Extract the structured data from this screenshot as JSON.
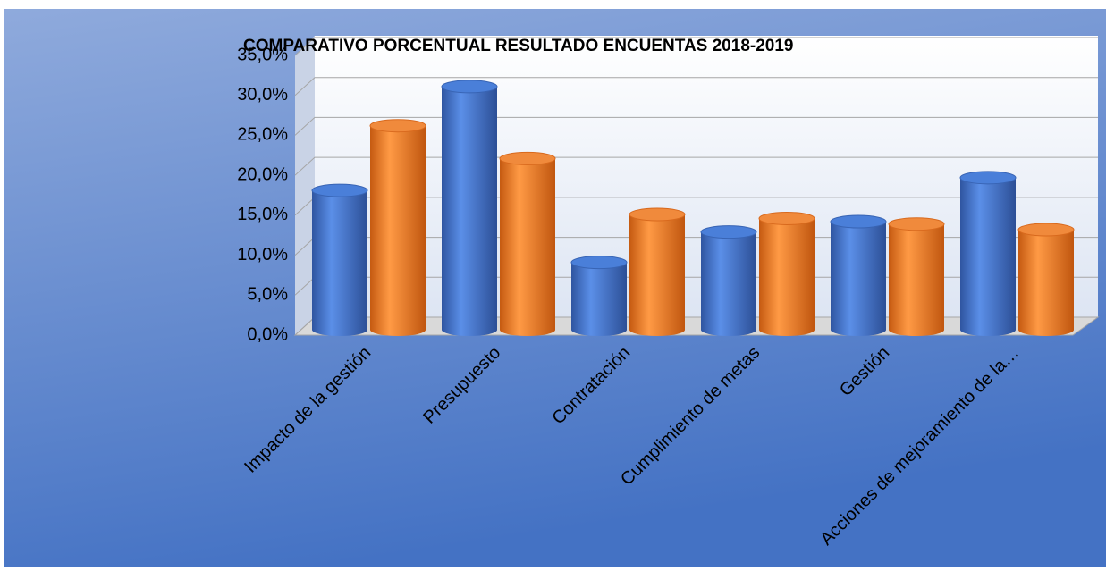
{
  "chart_data": {
    "type": "bar3d",
    "title": "COMPARATIVO PORCENTUAL RESULTADO ENCUENTAS 2018-2019",
    "categories": [
      "Impacto de la gestión",
      "Presupuesto",
      "Contratación",
      "Cumplimiento de metas",
      "Gestión",
      "Acciones de mejoramiento de la…"
    ],
    "series": [
      {
        "color": "#4472c4",
        "values": [
          17.2,
          30.2,
          8.2,
          12.0,
          13.3,
          18.8
        ]
      },
      {
        "color": "#ed7d31",
        "values": [
          25.3,
          21.2,
          14.2,
          13.7,
          13.0,
          12.3
        ]
      }
    ],
    "ylim": [
      0,
      35
    ],
    "yticks": [
      {
        "value": 0,
        "label": "0,0%"
      },
      {
        "value": 5,
        "label": "5,0%"
      },
      {
        "value": 10,
        "label": "10,0%"
      },
      {
        "value": 15,
        "label": "15,0%"
      },
      {
        "value": 20,
        "label": "20,0%"
      },
      {
        "value": 25,
        "label": "25,0%"
      },
      {
        "value": 30,
        "label": "30,0%"
      },
      {
        "value": 35,
        "label": "35,0%"
      }
    ],
    "grid": true
  }
}
